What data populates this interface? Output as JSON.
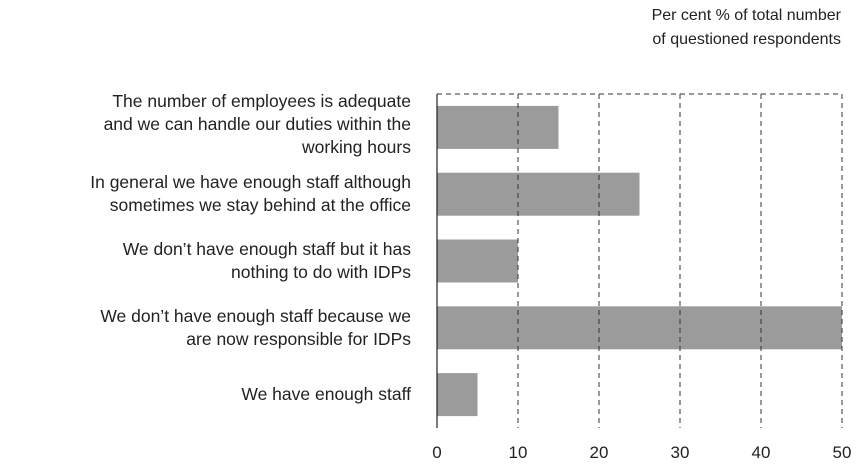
{
  "chart_data": {
    "type": "bar",
    "orientation": "horizontal",
    "unit_label": [
      "Per cent % of total number",
      "of questioned respondents"
    ],
    "categories": [
      [
        "The number of employees is adequate",
        "and we can handle our duties within the",
        "working hours"
      ],
      [
        "In general we have enough staff although",
        "sometimes we stay behind at the office"
      ],
      [
        "We don’t have enough staff but it has",
        "nothing to do with IDPs"
      ],
      [
        "We don’t have enough staff because we",
        "are now responsible for IDPs"
      ],
      [
        "We have enough staff"
      ]
    ],
    "values": [
      15,
      25,
      10,
      50,
      5
    ],
    "xlim": [
      0,
      50
    ],
    "xticks": [
      0,
      10,
      20,
      30,
      40,
      50
    ],
    "grid": "vertical dashed",
    "bar_color": "#9b9b9b",
    "axis_color": "#222222"
  }
}
